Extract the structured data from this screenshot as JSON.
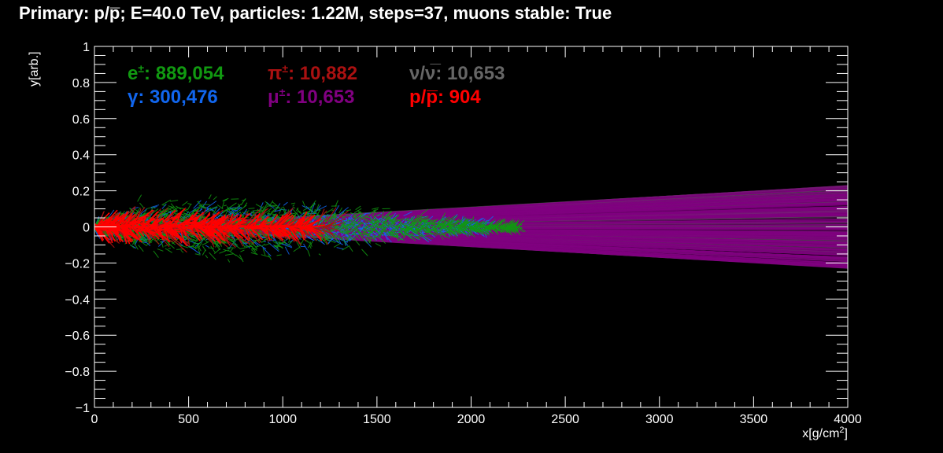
{
  "title": "Primary: p/p̅; E=40.0 TeV, particles: 1.22M, steps=37, muons stable: True",
  "chart_data": {
    "type": "scatter",
    "title": "Primary: p/p̅; E=40.0 TeV, particles: 1.22M, steps=37, muons stable: True",
    "xlabel_main": "x[g/cm",
    "xlabel_sup": "2",
    "xlabel_end": "]",
    "ylabel": "y[arb.]",
    "xlim": [
      0,
      4000
    ],
    "ylim": [
      -1,
      1
    ],
    "x_ticks": [
      0,
      500,
      1000,
      1500,
      2000,
      2500,
      3000,
      3500,
      4000
    ],
    "x_tick_labels": [
      "0",
      "500",
      "1000",
      "1500",
      "2000",
      "2500",
      "3000",
      "3500",
      "4000"
    ],
    "y_ticks": [
      -1,
      -0.8,
      -0.6,
      -0.4,
      -0.2,
      0,
      0.2,
      0.4,
      0.6,
      0.8,
      1
    ],
    "y_tick_labels": [
      "−1",
      "−0.8",
      "−0.6",
      "−0.4",
      "−0.2",
      "0",
      "0.2",
      "0.4",
      "0.6",
      "0.8",
      "1"
    ],
    "grid": false,
    "legend_placement": "top-left",
    "series": [
      {
        "name": "e±",
        "symbol": "e",
        "sup": "±",
        "count": "889,054",
        "color": "#119911",
        "x_range": [
          0,
          2250
        ],
        "y_envelope": [
          [
            0,
            0.03
          ],
          [
            200,
            0.16
          ],
          [
            700,
            0.2
          ],
          [
            1200,
            0.17
          ],
          [
            1600,
            0.1
          ],
          [
            2000,
            0.04
          ],
          [
            2250,
            0.01
          ]
        ]
      },
      {
        "name": "γ",
        "symbol": "γ",
        "sup": "",
        "count": "300,476",
        "color": "#1166ee",
        "x_range": [
          0,
          2100
        ],
        "y_envelope": [
          [
            0,
            0.03
          ],
          [
            200,
            0.14
          ],
          [
            700,
            0.17
          ],
          [
            1200,
            0.14
          ],
          [
            1600,
            0.08
          ],
          [
            2100,
            0.02
          ]
        ]
      },
      {
        "name": "π±",
        "symbol": "π",
        "sup": "±",
        "count": "10,882",
        "color": "#aa1111",
        "x_range": [
          0,
          1250
        ],
        "y_envelope": [
          [
            0,
            0.02
          ],
          [
            300,
            0.05
          ],
          [
            800,
            0.03
          ],
          [
            1250,
            0.005
          ]
        ]
      },
      {
        "name": "μ±",
        "symbol": "μ",
        "sup": "±",
        "count": "10,653",
        "color": "#800080",
        "x_range": [
          300,
          4000
        ],
        "y_envelope": [
          [
            300,
            0.02
          ],
          [
            1500,
            0.06
          ],
          [
            2500,
            0.12
          ],
          [
            4000,
            0.23
          ]
        ]
      },
      {
        "name": "ν/ν̅",
        "symbol": "ν/ν̅",
        "sup": "",
        "count": "10,653",
        "color": "#666666",
        "x_range": [
          300,
          4000
        ],
        "y_envelope": [
          [
            300,
            0.02
          ],
          [
            1500,
            0.06
          ],
          [
            2500,
            0.12
          ],
          [
            4000,
            0.23
          ]
        ]
      },
      {
        "name": "p/p̅",
        "symbol": "p/p̅",
        "sup": "",
        "count": "904",
        "color": "#ff0000",
        "x_range": [
          0,
          1150
        ],
        "y_envelope": [
          [
            0,
            0.02
          ],
          [
            200,
            0.06
          ],
          [
            500,
            0.05
          ],
          [
            900,
            0.02
          ],
          [
            1150,
            0.005
          ]
        ]
      }
    ]
  }
}
